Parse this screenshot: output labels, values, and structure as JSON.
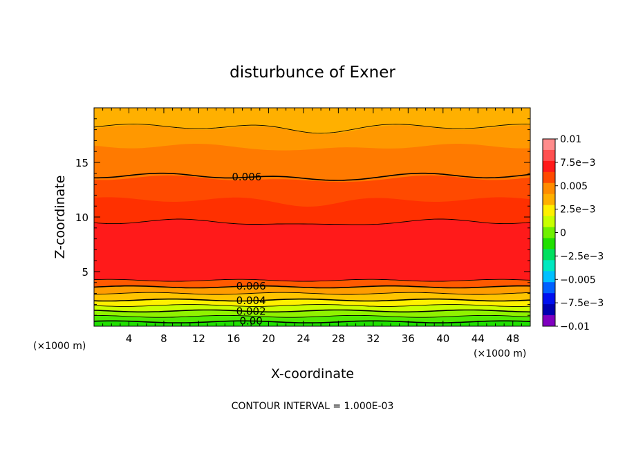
{
  "chart_data": {
    "type": "heatmap",
    "title": "disturbunce of Exner",
    "xlabel": "X-coordinate",
    "ylabel": "Z-coordinate",
    "x_unit_left": "(×1000 m)",
    "x_unit_right": "(×1000 m)",
    "xlim": [
      0,
      50
    ],
    "ylim": [
      0,
      20
    ],
    "x_ticks": [
      "4",
      "8",
      "12",
      "16",
      "20",
      "24",
      "28",
      "32",
      "36",
      "40",
      "44",
      "48"
    ],
    "x_tick_values": [
      4,
      8,
      12,
      16,
      20,
      24,
      28,
      32,
      36,
      40,
      44,
      48
    ],
    "y_ticks": [
      "5",
      "10",
      "15"
    ],
    "y_tick_values": [
      5,
      10,
      15
    ],
    "footer": "CONTOUR INTERVAL = 1.000E-03",
    "colorbar": {
      "labels": [
        "0.01",
        "7.5e−3",
        "0.005",
        "2.5e−3",
        "0",
        "−2.5e−3",
        "−0.005",
        "−7.5e−3",
        "−0.01"
      ],
      "label_values": [
        0.01,
        0.0075,
        0.005,
        0.0025,
        0,
        -0.0025,
        -0.005,
        -0.0075,
        -0.01
      ],
      "colors": [
        "#ff8c8c",
        "#ff5050",
        "#ff1a1a",
        "#ff4a00",
        "#ff8c00",
        "#ffb000",
        "#fff000",
        "#c8ff00",
        "#70f000",
        "#20e000",
        "#00e060",
        "#00e8c0",
        "#00c0ff",
        "#0060ff",
        "#0010f0",
        "#0000b0",
        "#8000c0"
      ]
    },
    "bands": [
      {
        "z_top": 0.4,
        "color": "#20e000"
      },
      {
        "z_top": 0.9,
        "color": "#50ea00"
      },
      {
        "z_top": 1.4,
        "color": "#90f200"
      },
      {
        "z_top": 1.9,
        "color": "#c8ff00"
      },
      {
        "z_top": 2.4,
        "color": "#fff000"
      },
      {
        "z_top": 3.0,
        "color": "#ffc400"
      },
      {
        "z_top": 3.6,
        "color": "#ff9c00"
      },
      {
        "z_top": 4.2,
        "color": "#ff5a00"
      },
      {
        "z_top": 9.6,
        "color": "#ff1a1a"
      },
      {
        "z_top": 11.6,
        "color": "#ff3000"
      },
      {
        "z_top": 13.6,
        "color": "#ff4a00"
      },
      {
        "z_top": 16.5,
        "color": "#ff7a00"
      },
      {
        "z_top": 18.2,
        "color": "#ff9800"
      },
      {
        "z_top": 20.0,
        "color": "#ffb000"
      }
    ],
    "contours": [
      {
        "value": "0.000",
        "z": 0.4,
        "labeled": true
      },
      {
        "value": "0.001",
        "z": 0.9,
        "labeled": false
      },
      {
        "value": "0.002",
        "z": 1.4,
        "labeled": true
      },
      {
        "value": "0.003",
        "z": 1.9,
        "labeled": false
      },
      {
        "value": "0.004",
        "z": 2.4,
        "labeled": true
      },
      {
        "value": "0.005",
        "z": 3.0,
        "labeled": false
      },
      {
        "value": "0.006",
        "z": 3.6,
        "labeled": true
      },
      {
        "value": "0.007",
        "z": 4.2,
        "labeled": false
      },
      {
        "value": "0.007",
        "z": 9.6,
        "labeled": false
      },
      {
        "value": "0.006",
        "z": 13.8,
        "labeled": true
      },
      {
        "value": "0.005",
        "z": 18.3,
        "labeled": false
      }
    ],
    "contour_label_text": [
      "0.00",
      "0.002",
      "0.004",
      "0.006",
      "0.006"
    ]
  }
}
